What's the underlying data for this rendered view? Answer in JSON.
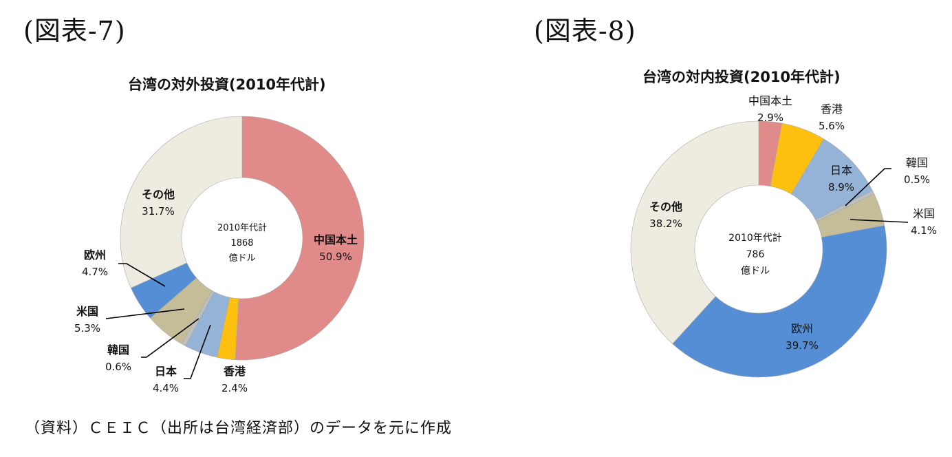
{
  "figures": [
    {
      "label": "(図表-7)"
    },
    {
      "label": "(図表-8)"
    }
  ],
  "source_note": "（資料）ＣＥＩＣ（出所は台湾経済部）のデータを元に作成",
  "chart_data": [
    {
      "type": "pie",
      "variant": "donut",
      "title": "台湾の対外投資(2010年代計)",
      "center_text": [
        "2010年代計",
        "1868",
        "億ドル"
      ],
      "total": 1868,
      "unit": "億ドル",
      "categories": [
        "中国本土",
        "香港",
        "日本",
        "韓国",
        "米国",
        "欧州",
        "その他"
      ],
      "values": [
        50.9,
        2.4,
        4.4,
        0.6,
        5.3,
        4.7,
        31.7
      ],
      "value_labels": [
        "50.9%",
        "2.4%",
        "4.4%",
        "0.6%",
        "5.3%",
        "4.7%",
        "31.7%"
      ],
      "colors": [
        "#e08a8a",
        "#fdc00f",
        "#95b3d7",
        "#bfbfbf",
        "#c4bd97",
        "#558ed5",
        "#eeece1"
      ],
      "start_angle": "12 o'clock",
      "direction": "clockwise"
    },
    {
      "type": "pie",
      "variant": "donut",
      "title": "台湾の対内投資(2010年代計)",
      "center_text": [
        "2010年代計",
        "786",
        "億ドル"
      ],
      "total": 786,
      "unit": "億ドル",
      "categories": [
        "中国本土",
        "香港",
        "日本",
        "韓国",
        "米国",
        "欧州",
        "その他"
      ],
      "values": [
        2.9,
        5.6,
        8.9,
        0.5,
        4.1,
        39.7,
        38.2
      ],
      "value_labels": [
        "2.9%",
        "5.6%",
        "8.9%",
        "0.5%",
        "4.1%",
        "39.7%",
        "38.2%"
      ],
      "colors": [
        "#e08a8a",
        "#fdc00f",
        "#95b3d7",
        "#bfbfbf",
        "#c4bd97",
        "#558ed5",
        "#eeece1"
      ],
      "start_angle": "12 o'clock",
      "direction": "clockwise"
    }
  ]
}
